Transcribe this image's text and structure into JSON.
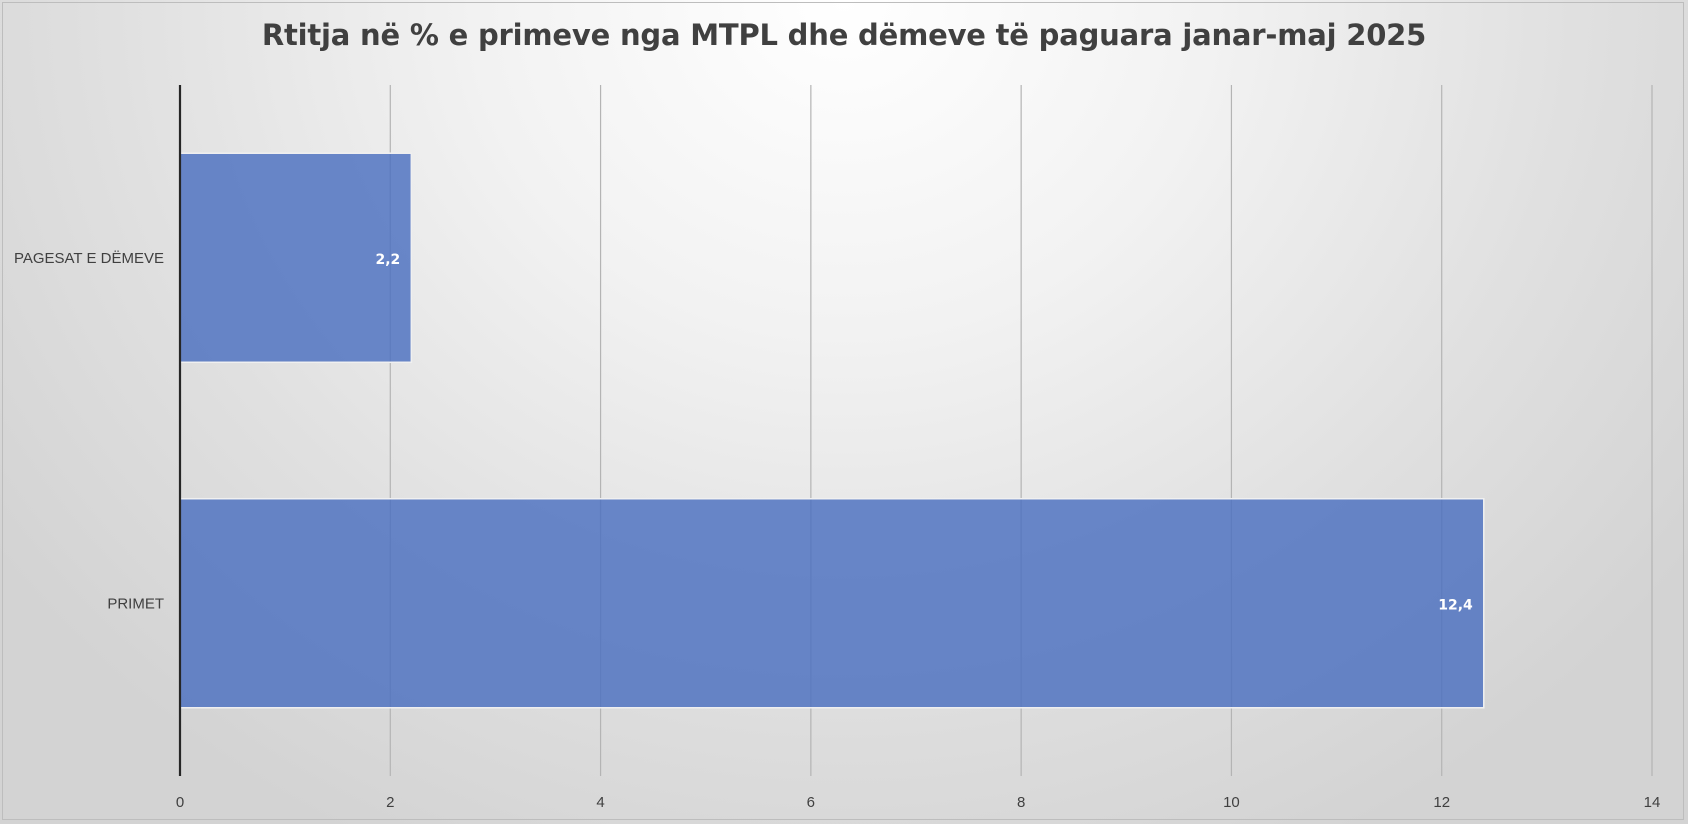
{
  "chart_data": {
    "type": "bar",
    "orientation": "horizontal",
    "title": "Rtitja në % e primeve nga MTPL dhe dëmeve të paguara janar-maj 2025",
    "categories": [
      "PAGESAT E DËMEVE",
      "PRIMET"
    ],
    "values": [
      2.2,
      12.4
    ],
    "value_labels": [
      "2,2",
      "12,4"
    ],
    "xlim": [
      0,
      14
    ],
    "x_ticks": [
      0,
      2,
      4,
      6,
      8,
      10,
      12,
      14
    ],
    "x_tick_labels": [
      "0",
      "2",
      "4",
      "6",
      "8",
      "10",
      "12",
      "14"
    ],
    "grid": "vertical",
    "legend": "none",
    "bar_color": "#4a6fbf"
  }
}
